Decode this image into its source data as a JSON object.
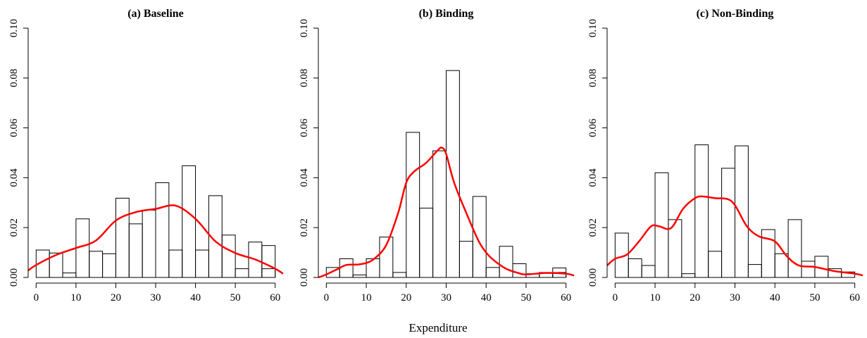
{
  "figure": {
    "xlabel": "Expenditure"
  },
  "chart_data": [
    {
      "type": "bar",
      "title": "(a) Baseline",
      "xlabel": "",
      "ylabel": "",
      "xlim": [
        -2,
        62
      ],
      "ylim": [
        0,
        0.1
      ],
      "xticks": [
        0,
        10,
        20,
        30,
        40,
        50,
        60
      ],
      "yticks": [
        0.0,
        0.02,
        0.04,
        0.06,
        0.08,
        0.1
      ],
      "ytick_labels": [
        "0.00",
        "0.02",
        "0.04",
        "0.06",
        "0.08",
        "0.10"
      ],
      "bin_width": 3.33,
      "bin_starts": [
        0,
        3.33,
        6.67,
        10,
        13.33,
        16.67,
        20,
        23.33,
        26.67,
        30,
        33.33,
        36.67,
        40,
        43.33,
        46.67,
        50,
        53.33,
        56.67
      ],
      "values": [
        0.011,
        0.0098,
        0.0018,
        0.0235,
        0.0105,
        0.0095,
        0.0318,
        0.0215,
        0.027,
        0.038,
        0.011,
        0.0448,
        0.011,
        0.0328,
        0.017,
        0.0035,
        0.0142,
        0.0128
      ],
      "values_overlay": [
        0,
        0,
        0,
        0,
        0,
        0,
        0,
        0,
        0,
        0,
        0,
        0,
        0,
        0,
        0,
        0,
        0,
        0.0035
      ],
      "density_color": "#ff0000",
      "density_x": [
        -2,
        0,
        5,
        10,
        15,
        20,
        25,
        30,
        35,
        40,
        45,
        50,
        55,
        60,
        62
      ],
      "density_y": [
        0.0028,
        0.005,
        0.009,
        0.0118,
        0.0148,
        0.0228,
        0.0262,
        0.0275,
        0.0288,
        0.0235,
        0.0145,
        0.0098,
        0.0072,
        0.0035,
        0.0015
      ]
    },
    {
      "type": "bar",
      "title": "(b) Binding",
      "xlabel": "",
      "ylabel": "",
      "xlim": [
        -2,
        62
      ],
      "ylim": [
        0,
        0.1
      ],
      "xticks": [
        0,
        10,
        20,
        30,
        40,
        50,
        60
      ],
      "yticks": [
        0.0,
        0.02,
        0.04,
        0.06,
        0.08,
        0.1
      ],
      "ytick_labels": [
        "0.00",
        "0.02",
        "0.04",
        "0.06",
        "0.08",
        "0.10"
      ],
      "bin_width": 3.33,
      "bin_starts": [
        0,
        3.33,
        6.67,
        10,
        13.33,
        16.67,
        20,
        23.33,
        26.67,
        30,
        33.33,
        36.67,
        40,
        43.33,
        46.67,
        50,
        53.33,
        56.67
      ],
      "values": [
        0.004,
        0.0075,
        0.001,
        0.0075,
        0.0162,
        0.002,
        0.0582,
        0.0278,
        0.0508,
        0.083,
        0.0145,
        0.0325,
        0.004,
        0.0125,
        0.0055,
        0.0015,
        0.002,
        0.0038
      ],
      "values_overlay": [
        0,
        0,
        0,
        0,
        0,
        0,
        0,
        0,
        0,
        0,
        0,
        0,
        0,
        0,
        0,
        0,
        0,
        0.002
      ],
      "density_color": "#ff0000",
      "density_x": [
        -2,
        0,
        3,
        5,
        8,
        10,
        12,
        15,
        18,
        20,
        22,
        25,
        28,
        29,
        30,
        32,
        35,
        38,
        40,
        42,
        45,
        48,
        50,
        55,
        60,
        62
      ],
      "density_y": [
        0.0,
        0.0012,
        0.0035,
        0.005,
        0.0052,
        0.0058,
        0.0075,
        0.013,
        0.026,
        0.038,
        0.0425,
        0.046,
        0.0512,
        0.052,
        0.0495,
        0.038,
        0.026,
        0.015,
        0.01,
        0.0068,
        0.0035,
        0.0018,
        0.0012,
        0.0018,
        0.0015,
        0.0008
      ]
    },
    {
      "type": "bar",
      "title": "(c) Non-Binding",
      "xlabel": "",
      "ylabel": "",
      "xlim": [
        -2,
        62
      ],
      "ylim": [
        0,
        0.1
      ],
      "xticks": [
        0,
        10,
        20,
        30,
        40,
        50,
        60
      ],
      "yticks": [
        0.0,
        0.02,
        0.04,
        0.06,
        0.08,
        0.1
      ],
      "ytick_labels": [
        "0.00",
        "0.02",
        "0.04",
        "0.06",
        "0.08",
        "0.10"
      ],
      "bin_width": 3.33,
      "bin_starts": [
        0,
        3.33,
        6.67,
        10,
        13.33,
        16.67,
        20,
        23.33,
        26.67,
        30,
        33.33,
        36.67,
        40,
        43.33,
        46.67,
        50,
        53.33,
        56.67
      ],
      "values": [
        0.0178,
        0.0075,
        0.0048,
        0.042,
        0.0232,
        0.0015,
        0.0532,
        0.0105,
        0.0438,
        0.0528,
        0.0052,
        0.0192,
        0.0095,
        0.0232,
        0.0065,
        0.0085,
        0.0035,
        0.0022
      ],
      "values_overlay": [
        0,
        0,
        0,
        0,
        0,
        0,
        0,
        0,
        0,
        0,
        0,
        0,
        0,
        0,
        0,
        0,
        0,
        0
      ],
      "density_color": "#ff0000",
      "density_x": [
        -2,
        0,
        3,
        6,
        9,
        11,
        14,
        17,
        20,
        22,
        25,
        28,
        30,
        33,
        36,
        40,
        43,
        46,
        50,
        55,
        60,
        62
      ],
      "density_y": [
        0.0048,
        0.0075,
        0.0092,
        0.0145,
        0.0205,
        0.0205,
        0.0198,
        0.0275,
        0.0318,
        0.0325,
        0.0318,
        0.0315,
        0.029,
        0.0205,
        0.0165,
        0.0145,
        0.0085,
        0.0048,
        0.0042,
        0.0025,
        0.0015,
        0.0008
      ]
    }
  ]
}
